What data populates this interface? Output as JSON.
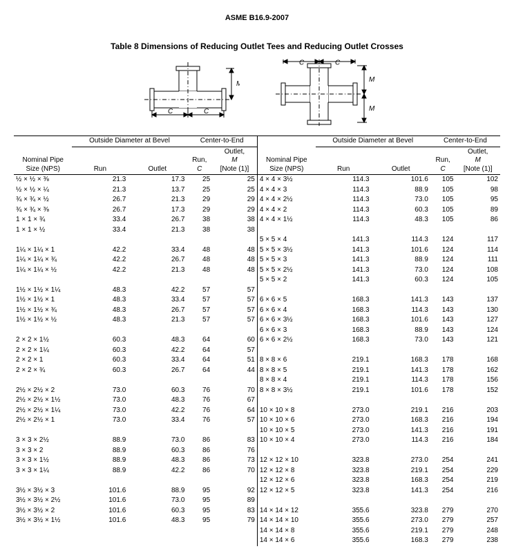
{
  "doc_header": "ASME B16.9-2007",
  "table_title": "Table 8   Dimensions of Reducing Outlet Tees and Reducing Outlet Crosses",
  "headers": {
    "nps": "Nominal Pipe Size (NPS)",
    "od_group": "Outside Diameter at Bevel",
    "c2e_group": "Center-to-End",
    "run": "Run",
    "outlet": "Outlet",
    "run_c": "Run,",
    "run_c_sym": "C",
    "outlet_m_line1": "Outlet,",
    "outlet_m_line2": "M",
    "outlet_m_note": "[Note (1)]"
  },
  "left_groups": [
    [
      {
        "nps": "½ × ½ × ⅜",
        "run": "21.3",
        "outlet": "17.3",
        "c": "25",
        "m": "25"
      },
      {
        "nps": "½ × ½ × ¼",
        "run": "21.3",
        "outlet": "13.7",
        "c": "25",
        "m": "25"
      },
      {
        "nps": "¾ × ¾ × ½",
        "run": "26.7",
        "outlet": "21.3",
        "c": "29",
        "m": "29"
      },
      {
        "nps": "¾ × ¾ × ⅜",
        "run": "26.7",
        "outlet": "17.3",
        "c": "29",
        "m": "29"
      },
      {
        "nps": "1 × 1 × ¾",
        "run": "33.4",
        "outlet": "26.7",
        "c": "38",
        "m": "38"
      },
      {
        "nps": "1 × 1 × ½",
        "run": "33.4",
        "outlet": "21.3",
        "c": "38",
        "m": "38"
      }
    ],
    [
      {
        "nps": "1¼ × 1¼ × 1",
        "run": "42.2",
        "outlet": "33.4",
        "c": "48",
        "m": "48"
      },
      {
        "nps": "1¼ × 1¼ × ¾",
        "run": "42.2",
        "outlet": "26.7",
        "c": "48",
        "m": "48"
      },
      {
        "nps": "1¼ × 1¼ × ½",
        "run": "42.2",
        "outlet": "21.3",
        "c": "48",
        "m": "48"
      }
    ],
    [
      {
        "nps": "1½ × 1½ × 1¼",
        "run": "48.3",
        "outlet": "42.2",
        "c": "57",
        "m": "57"
      },
      {
        "nps": "1½ × 1½ × 1",
        "run": "48.3",
        "outlet": "33.4",
        "c": "57",
        "m": "57"
      },
      {
        "nps": "1½ × 1½ × ¾",
        "run": "48.3",
        "outlet": "26.7",
        "c": "57",
        "m": "57"
      },
      {
        "nps": "1½ × 1½ × ½",
        "run": "48.3",
        "outlet": "21.3",
        "c": "57",
        "m": "57"
      }
    ],
    [
      {
        "nps": "2 × 2 × 1½",
        "run": "60.3",
        "outlet": "48.3",
        "c": "64",
        "m": "60"
      },
      {
        "nps": "2 × 2 × 1¼",
        "run": "60.3",
        "outlet": "42.2",
        "c": "64",
        "m": "57"
      },
      {
        "nps": "2 × 2 × 1",
        "run": "60.3",
        "outlet": "33.4",
        "c": "64",
        "m": "51"
      },
      {
        "nps": "2 × 2 × ¾",
        "run": "60.3",
        "outlet": "26.7",
        "c": "64",
        "m": "44"
      }
    ],
    [
      {
        "nps": "2½ × 2½ × 2",
        "run": "73.0",
        "outlet": "60.3",
        "c": "76",
        "m": "70"
      },
      {
        "nps": "2½ × 2½ × 1½",
        "run": "73.0",
        "outlet": "48.3",
        "c": "76",
        "m": "67"
      },
      {
        "nps": "2½ × 2½ × 1¼",
        "run": "73.0",
        "outlet": "42.2",
        "c": "76",
        "m": "64"
      },
      {
        "nps": "2½ × 2½ × 1",
        "run": "73.0",
        "outlet": "33.4",
        "c": "76",
        "m": "57"
      }
    ],
    [
      {
        "nps": "3 × 3 × 2½",
        "run": "88.9",
        "outlet": "73.0",
        "c": "86",
        "m": "83"
      },
      {
        "nps": "3 × 3 × 2",
        "run": "88.9",
        "outlet": "60.3",
        "c": "86",
        "m": "76"
      },
      {
        "nps": "3 × 3 × 1½",
        "run": "88.9",
        "outlet": "48.3",
        "c": "86",
        "m": "73"
      },
      {
        "nps": "3 × 3 × 1¼",
        "run": "88.9",
        "outlet": "42.2",
        "c": "86",
        "m": "70"
      }
    ],
    [
      {
        "nps": "3½ × 3½ × 3",
        "run": "101.6",
        "outlet": "88.9",
        "c": "95",
        "m": "92"
      },
      {
        "nps": "3½ × 3½ × 2½",
        "run": "101.6",
        "outlet": "73.0",
        "c": "95",
        "m": "89"
      },
      {
        "nps": "3½ × 3½ × 2",
        "run": "101.6",
        "outlet": "60.3",
        "c": "95",
        "m": "83"
      },
      {
        "nps": "3½ × 3½ × 1½",
        "run": "101.6",
        "outlet": "48.3",
        "c": "95",
        "m": "79"
      }
    ]
  ],
  "right_groups": [
    [
      {
        "nps": "4 × 4 × 3½",
        "run": "114.3",
        "outlet": "101.6",
        "c": "105",
        "m": "102"
      },
      {
        "nps": "4 × 4 × 3",
        "run": "114.3",
        "outlet": "88.9",
        "c": "105",
        "m": "98"
      },
      {
        "nps": "4 × 4 × 2½",
        "run": "114.3",
        "outlet": "73.0",
        "c": "105",
        "m": "95"
      },
      {
        "nps": "4 × 4 × 2",
        "run": "114.3",
        "outlet": "60.3",
        "c": "105",
        "m": "89"
      },
      {
        "nps": "4 × 4 × 1½",
        "run": "114.3",
        "outlet": "48.3",
        "c": "105",
        "m": "86"
      }
    ],
    [
      {
        "nps": "5 × 5 × 4",
        "run": "141.3",
        "outlet": "114.3",
        "c": "124",
        "m": "117"
      },
      {
        "nps": "5 × 5 × 3½",
        "run": "141.3",
        "outlet": "101.6",
        "c": "124",
        "m": "114"
      },
      {
        "nps": "5 × 5 × 3",
        "run": "141.3",
        "outlet": "88.9",
        "c": "124",
        "m": "111"
      },
      {
        "nps": "5 × 5 × 2½",
        "run": "141.3",
        "outlet": "73.0",
        "c": "124",
        "m": "108"
      },
      {
        "nps": "5 × 5 × 2",
        "run": "141.3",
        "outlet": "60.3",
        "c": "124",
        "m": "105"
      }
    ],
    [
      {
        "nps": "6 × 6 × 5",
        "run": "168.3",
        "outlet": "141.3",
        "c": "143",
        "m": "137"
      },
      {
        "nps": "6 × 6 × 4",
        "run": "168.3",
        "outlet": "114.3",
        "c": "143",
        "m": "130"
      },
      {
        "nps": "6 × 6 × 3½",
        "run": "168.3",
        "outlet": "101.6",
        "c": "143",
        "m": "127"
      },
      {
        "nps": "6 × 6 × 3",
        "run": "168.3",
        "outlet": "88.9",
        "c": "143",
        "m": "124"
      },
      {
        "nps": "6 × 6 × 2½",
        "run": "168.3",
        "outlet": "73.0",
        "c": "143",
        "m": "121"
      }
    ],
    [
      {
        "nps": "8 × 8 × 6",
        "run": "219.1",
        "outlet": "168.3",
        "c": "178",
        "m": "168"
      },
      {
        "nps": "8 × 8 × 5",
        "run": "219.1",
        "outlet": "141.3",
        "c": "178",
        "m": "162"
      },
      {
        "nps": "8 × 8 × 4",
        "run": "219.1",
        "outlet": "114.3",
        "c": "178",
        "m": "156"
      },
      {
        "nps": "8 × 8 × 3½",
        "run": "219.1",
        "outlet": "101.6",
        "c": "178",
        "m": "152"
      }
    ],
    [
      {
        "nps": "10 × 10 × 8",
        "run": "273.0",
        "outlet": "219.1",
        "c": "216",
        "m": "203"
      },
      {
        "nps": "10 × 10 × 6",
        "run": "273.0",
        "outlet": "168.3",
        "c": "216",
        "m": "194"
      },
      {
        "nps": "10 × 10 × 5",
        "run": "273.0",
        "outlet": "141.3",
        "c": "216",
        "m": "191"
      },
      {
        "nps": "10 × 10 × 4",
        "run": "273.0",
        "outlet": "114.3",
        "c": "216",
        "m": "184"
      }
    ],
    [
      {
        "nps": "12 × 12 × 10",
        "run": "323.8",
        "outlet": "273.0",
        "c": "254",
        "m": "241"
      },
      {
        "nps": "12 × 12 × 8",
        "run": "323.8",
        "outlet": "219.1",
        "c": "254",
        "m": "229"
      },
      {
        "nps": "12 × 12 × 6",
        "run": "323.8",
        "outlet": "168.3",
        "c": "254",
        "m": "219"
      },
      {
        "nps": "12 × 12 × 5",
        "run": "323.8",
        "outlet": "141.3",
        "c": "254",
        "m": "216"
      }
    ],
    [
      {
        "nps": "14 × 14 × 12",
        "run": "355.6",
        "outlet": "323.8",
        "c": "279",
        "m": "270"
      },
      {
        "nps": "14 × 14 × 10",
        "run": "355.6",
        "outlet": "273.0",
        "c": "279",
        "m": "257"
      },
      {
        "nps": "14 × 14 × 8",
        "run": "355.6",
        "outlet": "219.1",
        "c": "279",
        "m": "248"
      },
      {
        "nps": "14 × 14 × 6",
        "run": "355.6",
        "outlet": "168.3",
        "c": "279",
        "m": "238"
      }
    ]
  ],
  "diagram": {
    "labels": {
      "c": "C",
      "m": "M"
    },
    "colors": {
      "line": "#000000",
      "fill": "#ffffff",
      "hatch": "#888888"
    }
  }
}
